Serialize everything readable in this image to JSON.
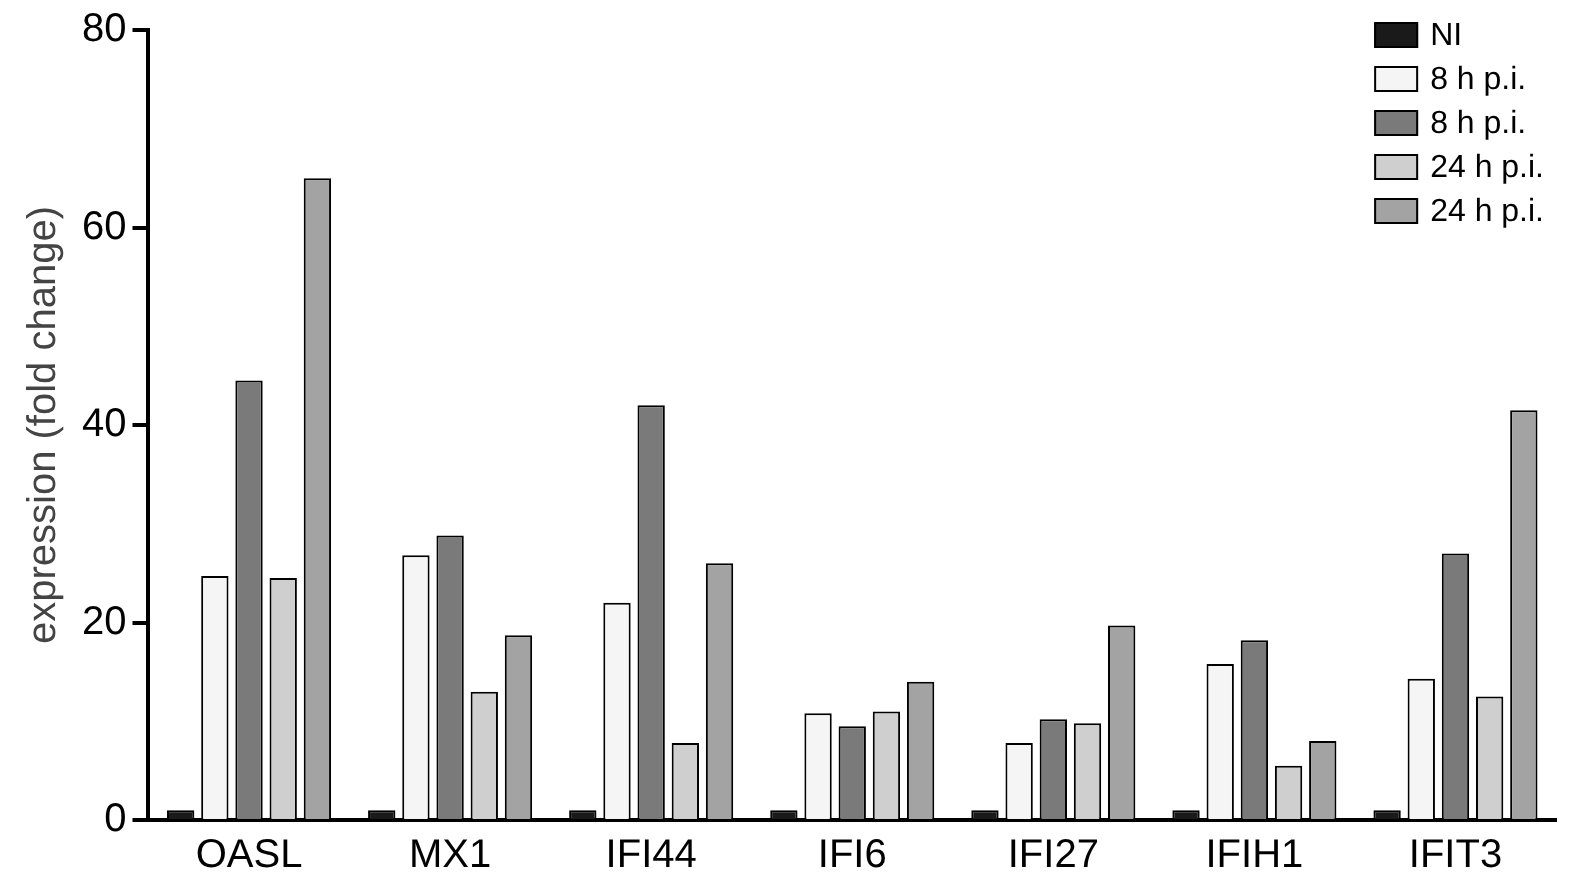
{
  "chart_data": {
    "type": "bar",
    "ylabel": "expression (fold change)",
    "categories": [
      "OASL",
      "MX1",
      "IFI44",
      "IFI6",
      "IFI27",
      "IFIH1",
      "IFIT3"
    ],
    "series": [
      {
        "name": "NI",
        "color": "#1a1a1a",
        "values": [
          1,
          1,
          1,
          1,
          1,
          1,
          1
        ]
      },
      {
        "name": "8 h p.i.",
        "color": "#f5f5f5",
        "values": [
          24.7,
          26.8,
          22,
          10.8,
          7.8,
          15.8,
          14.3
        ]
      },
      {
        "name": "8 h p.i.",
        "color": "#7a7a7a",
        "values": [
          44.5,
          28.8,
          42,
          9.5,
          10.2,
          18.2,
          27
        ]
      },
      {
        "name": "24 h p.i.",
        "color": "#cfcfcf",
        "values": [
          24.5,
          13,
          7.8,
          11,
          9.8,
          5.5,
          12.5
        ]
      },
      {
        "name": "24 h p.i.",
        "color": "#a3a3a3",
        "values": [
          65,
          18.7,
          26,
          14,
          19.7,
          8,
          41.5
        ]
      }
    ],
    "ylim": [
      0,
      80
    ],
    "yticks": [
      0,
      20,
      40,
      60,
      80
    ],
    "grid": false,
    "legend": "top right"
  }
}
